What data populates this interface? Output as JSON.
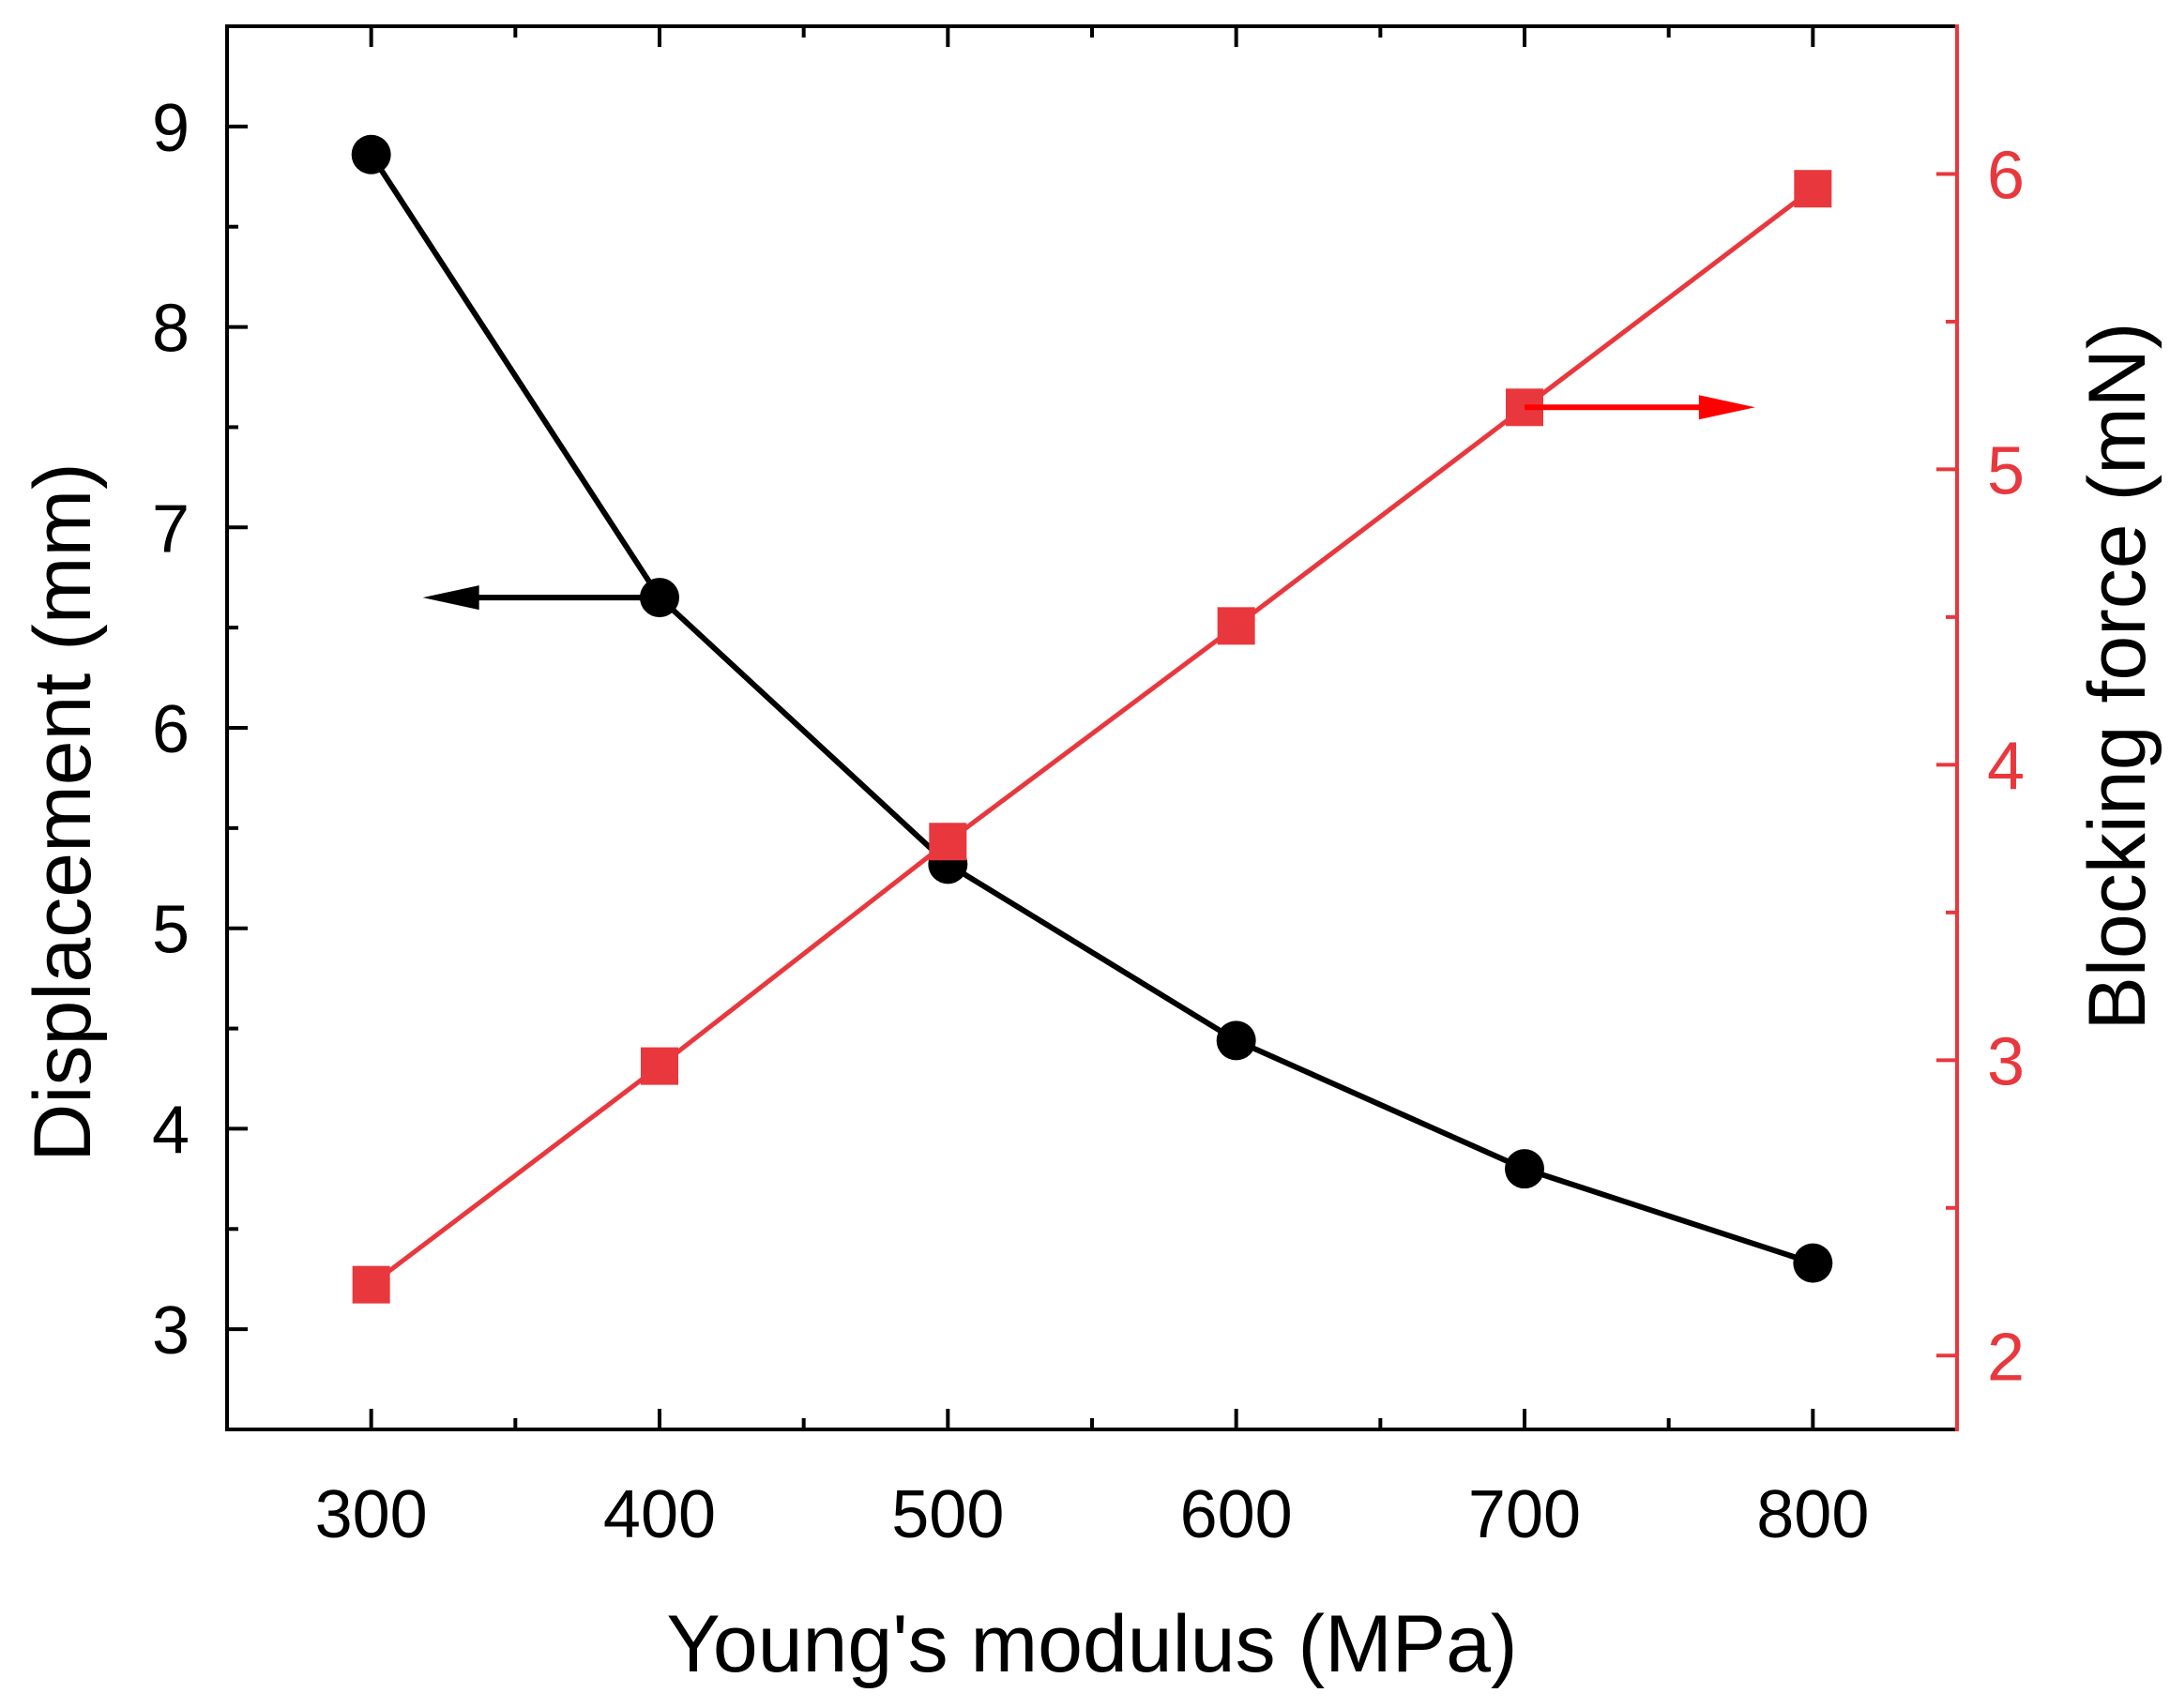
{
  "chart_data": {
    "type": "line",
    "title": "",
    "xlabel": "Young's modulus (MPa)",
    "ylabel": "Displacement (mm)",
    "ylabel_right": "Blocking force (mN)",
    "xlim": [
      250,
      850
    ],
    "ylim": [
      2.5,
      9.5
    ],
    "ylim_right": [
      1.75,
      6.5
    ],
    "x_ticks": [
      "300",
      "400",
      "500",
      "600",
      "700",
      "800"
    ],
    "y_ticks": [
      "3",
      "4",
      "5",
      "6",
      "7",
      "8",
      "9"
    ],
    "y_ticks_right": [
      "2",
      "3",
      "4",
      "5",
      "6"
    ],
    "x": [
      300,
      400,
      500,
      600,
      700,
      800
    ],
    "series": [
      {
        "name": "Displacement",
        "axis": "left",
        "marker": "circle",
        "color": "#000000",
        "values": [
          8.86,
          6.65,
          5.32,
          4.44,
          3.8,
          3.33
        ]
      },
      {
        "name": "Blocking force",
        "axis": "right",
        "marker": "square",
        "color": "#e8383d",
        "values": [
          2.24,
          2.98,
          3.74,
          4.47,
          5.21,
          5.95
        ]
      }
    ],
    "annotations": [
      {
        "name": "left-axis-arrow",
        "points_to": "left",
        "at_x": [
          300,
          400
        ],
        "at_y": 6.65,
        "axis": "left",
        "color": "#000000"
      },
      {
        "name": "right-axis-arrow",
        "points_to": "right",
        "at_x": [
          700,
          780
        ],
        "at_y": 5.21,
        "axis": "right",
        "color": "#ff0000"
      }
    ],
    "grid": false,
    "legend": "none"
  }
}
